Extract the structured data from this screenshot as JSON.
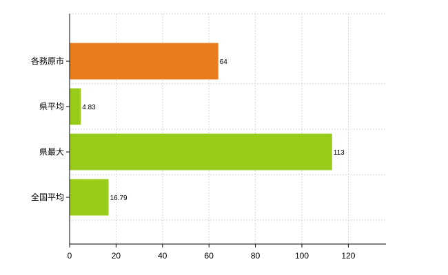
{
  "chart_data": {
    "type": "bar",
    "orientation": "horizontal",
    "categories": [
      "各務原市",
      "県平均",
      "県最大",
      "全国平均"
    ],
    "values": [
      64,
      4.83,
      113,
      16.79
    ],
    "value_labels": [
      "64",
      "4.83",
      "113",
      "16.79"
    ],
    "bar_colors": [
      "#e87d1e",
      "#99cc1a",
      "#99cc1a",
      "#99cc1a"
    ],
    "x_ticks": [
      0,
      20,
      40,
      60,
      80,
      100,
      120
    ],
    "xlim": [
      0,
      135
    ],
    "title": "",
    "xlabel": "",
    "ylabel": "",
    "grid": true,
    "legend": "none"
  }
}
